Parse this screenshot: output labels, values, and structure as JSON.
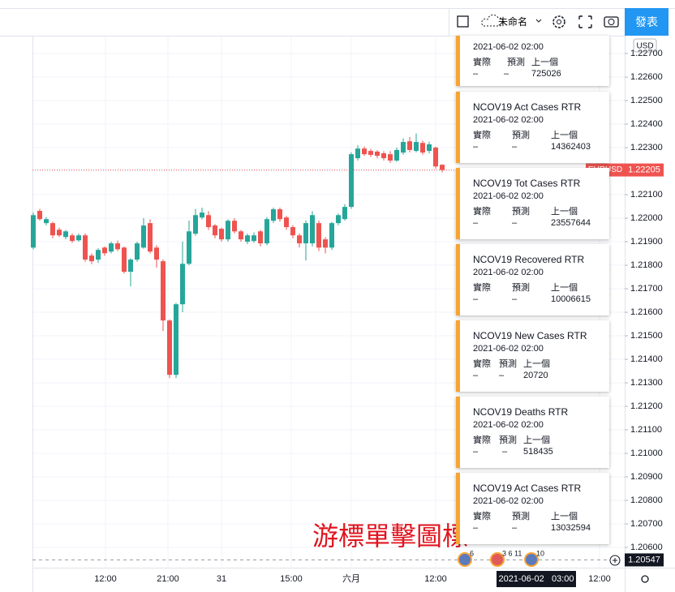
{
  "toolbar": {
    "layout_name": "未命名",
    "publish": "發表"
  },
  "chart_data": {
    "type": "candlestick",
    "currency": "USD",
    "symbol_tag": "EURUSD",
    "colors": {
      "up": "#26a69a",
      "down": "#ef5350"
    },
    "ylim": [
      1.20514,
      1.22776
    ],
    "yticks": [
      {
        "value": 1.206,
        "label": "1.20600"
      },
      {
        "value": 1.207,
        "label": "1.20700"
      },
      {
        "value": 1.208,
        "label": "1.20800"
      },
      {
        "value": 1.209,
        "label": "1.20900"
      },
      {
        "value": 1.21,
        "label": "1.21000"
      },
      {
        "value": 1.211,
        "label": "1.21100"
      },
      {
        "value": 1.212,
        "label": "1.21200"
      },
      {
        "value": 1.213,
        "label": "1.21300"
      },
      {
        "value": 1.214,
        "label": "1.21400"
      },
      {
        "value": 1.215,
        "label": "1.21500"
      },
      {
        "value": 1.216,
        "label": "1.21600"
      },
      {
        "value": 1.217,
        "label": "1.21700"
      },
      {
        "value": 1.218,
        "label": "1.21800"
      },
      {
        "value": 1.219,
        "label": "1.21900"
      },
      {
        "value": 1.22,
        "label": "1.22000"
      },
      {
        "value": 1.221,
        "label": "1.22100"
      },
      {
        "value": 1.222,
        "label": "1.22200"
      },
      {
        "value": 1.223,
        "label": "1.22300"
      },
      {
        "value": 1.224,
        "label": "1.22400"
      },
      {
        "value": 1.225,
        "label": "1.22500"
      },
      {
        "value": 1.226,
        "label": "1.22600"
      },
      {
        "value": 1.227,
        "label": "1.22700"
      }
    ],
    "time_axis": [
      "12:00",
      "21:00",
      "31",
      "15:00",
      "六月",
      "12:00",
      "12:00"
    ],
    "crosshair_time": "2021-06-02   03:00",
    "last_price": 1.22205,
    "cursor_price": 1.20547,
    "candles": [
      [
        1.21875,
        1.22024,
        1.21868,
        1.22013
      ],
      [
        1.22031,
        1.2204,
        1.2199,
        1.21996
      ],
      [
        1.21979,
        1.22005,
        1.2197,
        1.21996
      ],
      [
        1.21979,
        1.21985,
        1.21915,
        1.21927
      ],
      [
        1.21951,
        1.2196,
        1.2192,
        1.21927
      ],
      [
        1.2192,
        1.2195,
        1.2191,
        1.21944
      ],
      [
        1.21927,
        1.21935,
        1.21895,
        1.21903
      ],
      [
        1.21906,
        1.21935,
        1.219,
        1.21927
      ],
      [
        1.21927,
        1.21935,
        1.21815,
        1.21824
      ],
      [
        1.21841,
        1.2185,
        1.21805,
        1.21817
      ],
      [
        1.21824,
        1.21872,
        1.2181,
        1.21865
      ],
      [
        1.21875,
        1.2188,
        1.2184,
        1.21851
      ],
      [
        1.21858,
        1.219,
        1.2185,
        1.21893
      ],
      [
        1.21893,
        1.21905,
        1.2186,
        1.21868
      ],
      [
        1.21875,
        1.2188,
        1.21765,
        1.21772
      ],
      [
        1.21772,
        1.2183,
        1.2171,
        1.21824
      ],
      [
        1.21824,
        1.219,
        1.21815,
        1.21893
      ],
      [
        1.21875,
        1.22,
        1.2187,
        1.21969
      ],
      [
        1.21979,
        1.21995,
        1.2185,
        1.21858
      ],
      [
        1.21875,
        1.21885,
        1.2179,
        1.21824
      ],
      [
        1.21817,
        1.21825,
        1.2152,
        1.21565
      ],
      [
        1.21565,
        1.2157,
        1.2132,
        1.21334
      ],
      [
        1.21334,
        1.2164,
        1.2132,
        1.21634
      ],
      [
        1.21634,
        1.219,
        1.216,
        1.21806
      ],
      [
        1.21806,
        1.2199,
        1.218,
        1.21944
      ],
      [
        1.21934,
        1.2204,
        1.21925,
        1.22013
      ],
      [
        1.22003,
        1.22045,
        1.21995,
        1.22024
      ],
      [
        1.22013,
        1.2203,
        1.2195,
        1.21962
      ],
      [
        1.21969,
        1.21975,
        1.21915,
        1.21927
      ],
      [
        1.21955,
        1.2196,
        1.219,
        1.2191
      ],
      [
        1.2191,
        1.21995,
        1.219,
        1.21989
      ],
      [
        1.21989,
        1.22,
        1.21935,
        1.21944
      ],
      [
        1.21944,
        1.2195,
        1.219,
        1.2191
      ],
      [
        1.219,
        1.21935,
        1.2189,
        1.21927
      ],
      [
        1.21903,
        1.2194,
        1.21895,
        1.21927
      ],
      [
        1.21944,
        1.2195,
        1.2188,
        1.21893
      ],
      [
        1.21893,
        1.22005,
        1.21885,
        1.21996
      ],
      [
        1.21989,
        1.22045,
        1.2198,
        1.22038
      ],
      [
        1.22038,
        1.22045,
        1.21985,
        1.21996
      ],
      [
        1.22003,
        1.2201,
        1.2195,
        1.21962
      ],
      [
        1.21962,
        1.2197,
        1.21915,
        1.21927
      ],
      [
        1.21927,
        1.21935,
        1.21875,
        1.21893
      ],
      [
        1.21893,
        1.2199,
        1.2182,
        1.21979
      ],
      [
        1.21893,
        1.2203,
        1.2188,
        1.22013
      ],
      [
        1.21979,
        1.2199,
        1.2186,
        1.21875
      ],
      [
        1.2191,
        1.2192,
        1.2185,
        1.21875
      ],
      [
        1.21875,
        1.21985,
        1.21865,
        1.21979
      ],
      [
        1.21979,
        1.2202,
        1.2197,
        1.22013
      ],
      [
        1.21996,
        1.2206,
        1.2199,
        1.22048
      ],
      [
        1.22048,
        1.2228,
        1.2204,
        1.22272
      ],
      [
        1.22255,
        1.2231,
        1.22245,
        1.22296
      ],
      [
        1.22296,
        1.22305,
        1.22265,
        1.22272
      ],
      [
        1.22286,
        1.22295,
        1.2226,
        1.22269
      ],
      [
        1.22283,
        1.2229,
        1.22255,
        1.22265
      ],
      [
        1.22276,
        1.22285,
        1.22245,
        1.22255
      ],
      [
        1.22272,
        1.22285,
        1.22235,
        1.22245
      ],
      [
        1.22245,
        1.223,
        1.2224,
        1.2229
      ],
      [
        1.22279,
        1.2234,
        1.2227,
        1.22324
      ],
      [
        1.22327,
        1.22345,
        1.2228,
        1.2229
      ],
      [
        1.22286,
        1.2236,
        1.2228,
        1.22324
      ],
      [
        1.2232,
        1.2233,
        1.2227,
        1.22279
      ],
      [
        1.22286,
        1.22325,
        1.22275,
        1.22314
      ],
      [
        1.223,
        1.22305,
        1.2221,
        1.2222
      ],
      [
        1.22227,
        1.2223,
        1.22195,
        1.22205
      ]
    ]
  },
  "events": [
    "6",
    "3 6 11",
    "10"
  ],
  "cards": [
    {
      "date": "2021-06-02 02:00",
      "headers": [
        "實際",
        "預測",
        "上一個"
      ],
      "values": [
        "–",
        "–",
        725026
      ]
    },
    {
      "title": "NCOV19 Act Cases RTR",
      "date": "2021-06-02 02:00",
      "headers": [
        "實際",
        "預測",
        "上一個"
      ],
      "values": [
        "–",
        "–",
        14362403
      ]
    },
    {
      "title": "NCOV19 Tot Cases RTR",
      "date": "2021-06-02 02:00",
      "headers": [
        "實際",
        "預測",
        "上一個"
      ],
      "values": [
        "–",
        "–",
        23557644
      ]
    },
    {
      "title": "NCOV19 Recovered RTR",
      "date": "2021-06-02 02:00",
      "headers": [
        "實際",
        "預測",
        "上一個"
      ],
      "values": [
        "–",
        "–",
        10006615
      ]
    },
    {
      "title": "NCOV19 New Cases RTR",
      "date": "2021-06-02 02:00",
      "headers": [
        "實際",
        "預測",
        "上一個"
      ],
      "values": [
        "–",
        "–",
        20720
      ]
    },
    {
      "title": "NCOV19 Deaths RTR",
      "date": "2021-06-02 02:00",
      "headers": [
        "實際",
        "預測",
        "上一個"
      ],
      "values": [
        "–",
        "–",
        518435
      ]
    },
    {
      "title": "NCOV19 Act Cases RTR",
      "date": "2021-06-02 02:00",
      "headers": [
        "實際",
        "預測",
        "上一個"
      ],
      "values": [
        "–",
        "–",
        13032594
      ]
    }
  ],
  "annotation": "游標單擊圖標"
}
